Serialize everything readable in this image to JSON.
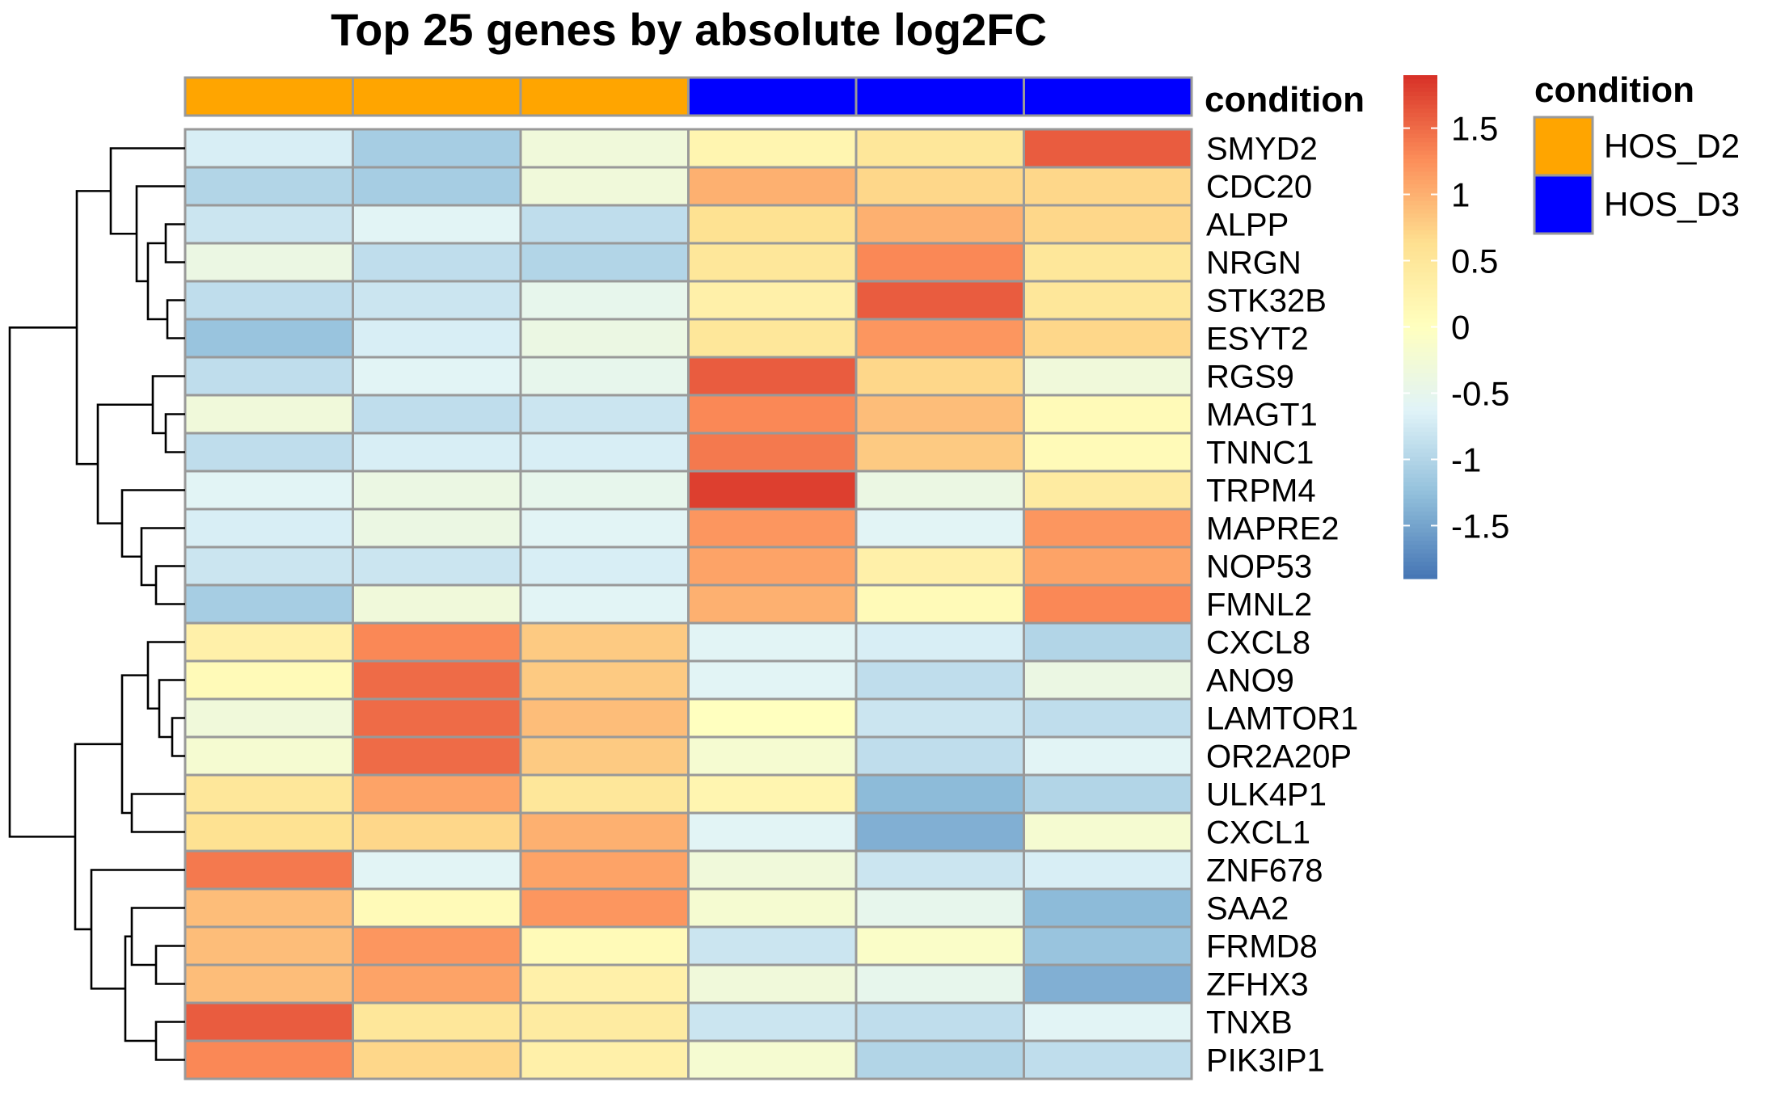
{
  "chart_data": {
    "type": "heatmap",
    "title": "Top 25 genes by absolute log2FC",
    "genes": [
      "SMYD2",
      "CDC20",
      "ALPP",
      "NRGN",
      "STK32B",
      "ESYT2",
      "RGS9",
      "MAGT1",
      "TNNC1",
      "TRPM4",
      "MAPRE2",
      "NOP53",
      "FMNL2",
      "CXCL8",
      "ANO9",
      "LAMTOR1",
      "OR2A20P",
      "ULK4P1",
      "CXCL1",
      "ZNF678",
      "SAA2",
      "FRMD8",
      "ZFHX3",
      "TNXB",
      "PIK3IP1"
    ],
    "samples": [
      {
        "condition": "HOS_D2"
      },
      {
        "condition": "HOS_D2"
      },
      {
        "condition": "HOS_D2"
      },
      {
        "condition": "HOS_D3"
      },
      {
        "condition": "HOS_D3"
      },
      {
        "condition": "HOS_D3"
      }
    ],
    "values": [
      [
        -0.7,
        -1.1,
        -0.3,
        0.2,
        0.5,
        1.6
      ],
      [
        -1.0,
        -1.1,
        -0.3,
        1.0,
        0.7,
        0.7
      ],
      [
        -0.8,
        -0.6,
        -0.9,
        0.6,
        1.0,
        0.7
      ],
      [
        -0.4,
        -0.9,
        -1.0,
        0.5,
        1.3,
        0.5
      ],
      [
        -0.9,
        -0.8,
        -0.5,
        0.3,
        1.6,
        0.5
      ],
      [
        -1.2,
        -0.7,
        -0.4,
        0.5,
        1.2,
        0.7
      ],
      [
        -0.9,
        -0.6,
        -0.5,
        1.6,
        0.7,
        -0.3
      ],
      [
        -0.3,
        -0.9,
        -0.8,
        1.3,
        0.9,
        0.1
      ],
      [
        -0.9,
        -0.7,
        -0.7,
        1.4,
        0.8,
        0.1
      ],
      [
        -0.6,
        -0.4,
        -0.5,
        1.8,
        -0.4,
        0.4
      ],
      [
        -0.7,
        -0.4,
        -0.6,
        1.2,
        -0.6,
        1.2
      ],
      [
        -0.8,
        -0.8,
        -0.7,
        1.1,
        0.3,
        1.1
      ],
      [
        -1.1,
        -0.3,
        -0.6,
        1.0,
        0.1,
        1.3
      ],
      [
        0.3,
        1.3,
        0.8,
        -0.6,
        -0.7,
        -1.0
      ],
      [
        0.1,
        1.5,
        0.8,
        -0.6,
        -0.9,
        -0.4
      ],
      [
        -0.3,
        1.5,
        0.9,
        0.0,
        -0.8,
        -0.9
      ],
      [
        -0.2,
        1.5,
        0.8,
        -0.2,
        -0.9,
        -0.6
      ],
      [
        0.5,
        1.1,
        0.5,
        0.2,
        -1.3,
        -1.0
      ],
      [
        0.6,
        0.7,
        1.0,
        -0.6,
        -1.4,
        -0.2
      ],
      [
        1.4,
        -0.6,
        1.1,
        -0.3,
        -0.8,
        -0.7
      ],
      [
        0.9,
        0.1,
        1.2,
        -0.2,
        -0.5,
        -1.3
      ],
      [
        0.9,
        1.2,
        0.1,
        -0.8,
        -0.1,
        -1.2
      ],
      [
        0.9,
        1.1,
        0.3,
        -0.3,
        -0.5,
        -1.4
      ],
      [
        1.6,
        0.5,
        0.4,
        -0.8,
        -0.9,
        -0.6
      ],
      [
        1.3,
        0.7,
        0.3,
        -0.2,
        -1.0,
        -0.9
      ]
    ],
    "color_scale": {
      "min": -1.9,
      "max": 1.9,
      "ticks": [
        1.5,
        1,
        0.5,
        0,
        -0.5,
        -1,
        -1.5
      ],
      "tick_labels": [
        "1.5",
        "1",
        "0.5",
        "0",
        "-0.5",
        "-1",
        "-1.5"
      ],
      "colors": [
        "#4575b4",
        "#91bfdb",
        "#e0f3f8",
        "#ffffbf",
        "#fee090",
        "#fc8d59",
        "#d73027"
      ]
    },
    "annotation": {
      "name": "condition",
      "levels": [
        {
          "label": "HOS_D2",
          "color": "#ffa500"
        },
        {
          "label": "HOS_D3",
          "color": "#0000ff"
        }
      ]
    },
    "row_dendrogram": "clustered",
    "cell_border_color": "#999999"
  }
}
